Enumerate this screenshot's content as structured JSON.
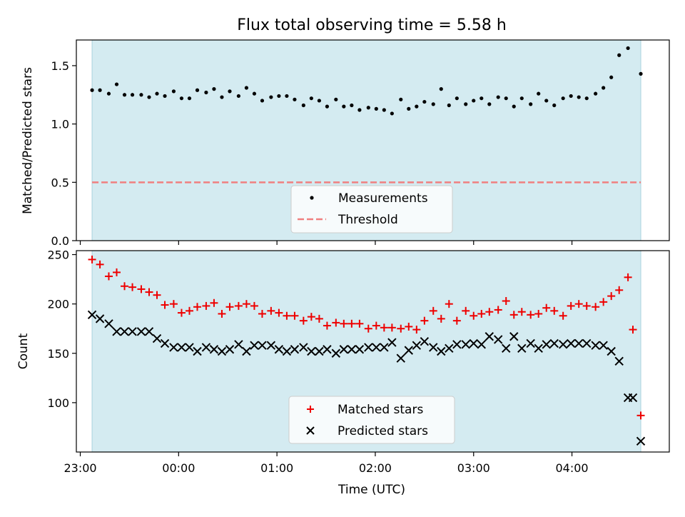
{
  "title": "Flux total observing time = 5.58 h",
  "colors": {
    "shade": "#d4ebf1",
    "measurements": "#000000",
    "threshold": "#f08080",
    "matched": "#ee0000",
    "predicted": "#000000"
  },
  "chart_data": [
    {
      "type": "scatter",
      "ylabel": "Matched/Predicted stars",
      "xlabel": "",
      "xlim": [
        -0.04,
        5.99
      ],
      "ylim": [
        0,
        1.72
      ],
      "yticks": [
        0,
        0.5,
        1.0,
        1.5
      ],
      "ytick_labels": [
        "0.0",
        "0.5",
        "1.0",
        "1.5"
      ],
      "shaded_span": [
        0.12,
        5.7
      ],
      "threshold": 0.5,
      "legend": {
        "position": "lower-center",
        "entries": [
          "Measurements",
          "Threshold"
        ]
      },
      "series": [
        {
          "name": "Measurements",
          "marker": "dot",
          "x": [
            0.12,
            0.2,
            0.29,
            0.37,
            0.45,
            0.53,
            0.62,
            0.7,
            0.78,
            0.86,
            0.95,
            1.03,
            1.11,
            1.19,
            1.28,
            1.36,
            1.44,
            1.52,
            1.61,
            1.69,
            1.77,
            1.85,
            1.94,
            2.02,
            2.1,
            2.18,
            2.27,
            2.35,
            2.43,
            2.51,
            2.6,
            2.68,
            2.76,
            2.84,
            2.93,
            3.01,
            3.09,
            3.17,
            3.26,
            3.34,
            3.42,
            3.5,
            3.59,
            3.67,
            3.75,
            3.83,
            3.92,
            4.0,
            4.08,
            4.16,
            4.25,
            4.33,
            4.41,
            4.49,
            4.58,
            4.66,
            4.74,
            4.82,
            4.91,
            4.99,
            5.07,
            5.15,
            5.24,
            5.32,
            5.4,
            5.48,
            5.57,
            5.7
          ],
          "y": [
            1.29,
            1.29,
            1.26,
            1.34,
            1.25,
            1.25,
            1.25,
            1.23,
            1.26,
            1.24,
            1.28,
            1.22,
            1.22,
            1.29,
            1.27,
            1.3,
            1.23,
            1.28,
            1.24,
            1.31,
            1.26,
            1.2,
            1.23,
            1.24,
            1.24,
            1.21,
            1.16,
            1.22,
            1.2,
            1.15,
            1.21,
            1.15,
            1.16,
            1.12,
            1.14,
            1.13,
            1.12,
            1.09,
            1.21,
            1.13,
            1.15,
            1.19,
            1.17,
            1.3,
            1.16,
            1.22,
            1.17,
            1.2,
            1.22,
            1.17,
            1.23,
            1.22,
            1.15,
            1.22,
            1.17,
            1.26,
            1.2,
            1.16,
            1.22,
            1.24,
            1.23,
            1.22,
            1.26,
            1.31,
            1.4,
            1.59,
            1.65,
            1.43
          ]
        }
      ]
    },
    {
      "type": "scatter",
      "ylabel": "Count",
      "xlabel": "Time (UTC)",
      "xlim": [
        -0.04,
        5.99
      ],
      "ylim": [
        50,
        254
      ],
      "yticks": [
        100,
        150,
        200,
        250
      ],
      "ytick_labels": [
        "100",
        "150",
        "200",
        "250"
      ],
      "xticks": [
        0,
        1,
        2,
        3,
        4,
        5
      ],
      "xtick_labels": [
        "23:00",
        "00:00",
        "01:00",
        "02:00",
        "03:00",
        "04:00"
      ],
      "shaded_span": [
        0.12,
        5.7
      ],
      "legend": {
        "position": "lower-center",
        "entries": [
          "Matched stars",
          "Predicted stars"
        ]
      },
      "series": [
        {
          "name": "Matched stars",
          "marker": "plus",
          "x": [
            0.12,
            0.2,
            0.29,
            0.37,
            0.45,
            0.53,
            0.62,
            0.7,
            0.78,
            0.86,
            0.95,
            1.03,
            1.11,
            1.19,
            1.28,
            1.36,
            1.44,
            1.52,
            1.61,
            1.69,
            1.77,
            1.85,
            1.94,
            2.02,
            2.1,
            2.18,
            2.27,
            2.35,
            2.43,
            2.51,
            2.6,
            2.68,
            2.76,
            2.84,
            2.93,
            3.01,
            3.09,
            3.17,
            3.26,
            3.34,
            3.42,
            3.5,
            3.59,
            3.67,
            3.75,
            3.83,
            3.92,
            4.0,
            4.08,
            4.16,
            4.25,
            4.33,
            4.41,
            4.49,
            4.58,
            4.66,
            4.74,
            4.82,
            4.91,
            4.99,
            5.07,
            5.15,
            5.24,
            5.32,
            5.4,
            5.48,
            5.57,
            5.62,
            5.7
          ],
          "y": [
            245,
            240,
            228,
            232,
            218,
            217,
            215,
            212,
            209,
            199,
            200,
            191,
            193,
            197,
            198,
            201,
            190,
            197,
            198,
            200,
            198,
            190,
            193,
            191,
            188,
            188,
            183,
            187,
            185,
            178,
            181,
            180,
            180,
            180,
            175,
            178,
            176,
            176,
            175,
            177,
            174,
            183,
            193,
            185,
            200,
            183,
            193,
            188,
            190,
            192,
            194,
            203,
            189,
            192,
            189,
            190,
            196,
            193,
            188,
            198,
            200,
            198,
            197,
            202,
            208,
            214,
            227,
            174,
            87
          ]
        },
        {
          "name": "Predicted stars",
          "marker": "x",
          "x": [
            0.12,
            0.2,
            0.29,
            0.37,
            0.45,
            0.53,
            0.62,
            0.7,
            0.78,
            0.86,
            0.95,
            1.03,
            1.11,
            1.19,
            1.28,
            1.36,
            1.44,
            1.52,
            1.61,
            1.69,
            1.77,
            1.85,
            1.94,
            2.02,
            2.1,
            2.18,
            2.27,
            2.35,
            2.43,
            2.51,
            2.6,
            2.68,
            2.76,
            2.84,
            2.93,
            3.01,
            3.09,
            3.17,
            3.26,
            3.34,
            3.42,
            3.5,
            3.59,
            3.67,
            3.75,
            3.83,
            3.92,
            4.0,
            4.08,
            4.16,
            4.25,
            4.33,
            4.41,
            4.49,
            4.58,
            4.66,
            4.74,
            4.82,
            4.91,
            4.99,
            5.07,
            5.15,
            5.24,
            5.32,
            5.4,
            5.48,
            5.57,
            5.62,
            5.7
          ],
          "y": [
            189,
            185,
            180,
            172,
            172,
            172,
            172,
            172,
            165,
            160,
            156,
            156,
            156,
            152,
            156,
            154,
            152,
            154,
            159,
            152,
            158,
            158,
            158,
            154,
            152,
            154,
            156,
            152,
            152,
            154,
            150,
            154,
            154,
            154,
            156,
            156,
            156,
            161,
            145,
            153,
            158,
            162,
            156,
            152,
            155,
            159,
            159,
            160,
            159,
            167,
            164,
            155,
            167,
            155,
            160,
            155,
            159,
            160,
            159,
            160,
            160,
            160,
            158,
            158,
            152,
            142,
            105,
            105,
            61
          ]
        }
      ]
    }
  ]
}
